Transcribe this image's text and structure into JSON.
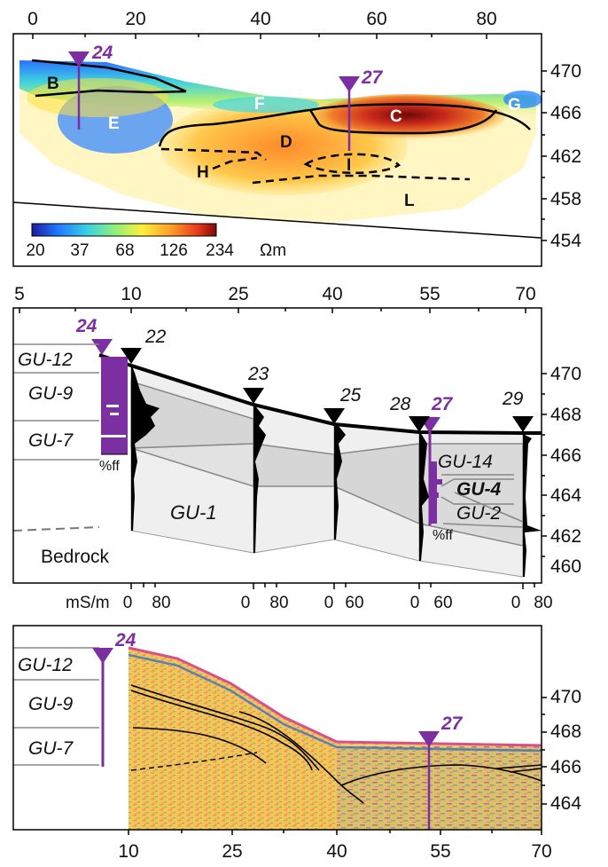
{
  "panel_a": {
    "x_ticks": [
      "0",
      "20",
      "40",
      "60",
      "80"
    ],
    "y_ticks": [
      "470",
      "466",
      "462",
      "458",
      "454"
    ],
    "wells": [
      {
        "label": "24"
      },
      {
        "label": "27"
      }
    ],
    "zones": [
      "B",
      "E",
      "F",
      "C",
      "G",
      "D",
      "H",
      "I",
      "L"
    ],
    "colorbar": {
      "ticks": [
        "20",
        "37",
        "68",
        "126",
        "234"
      ],
      "unit": "Ωm",
      "colors": [
        "#1a1aa0",
        "#1f78ff",
        "#3ad0e6",
        "#8ef07a",
        "#ffef3a",
        "#ff9f2a",
        "#e83a1a",
        "#7a0a0a"
      ]
    }
  },
  "panel_b": {
    "x_ticks": [
      "5",
      "10",
      "25",
      "40",
      "55",
      "70"
    ],
    "y_ticks": [
      "470",
      "468",
      "466",
      "464",
      "462",
      "460"
    ],
    "boreholes": [
      "22",
      "23",
      "25",
      "28",
      "29"
    ],
    "well_24": "24",
    "well_27": "27",
    "units_left": [
      "GU-12",
      "GU-9",
      "GU-7"
    ],
    "units_right": [
      "GU-14",
      "GU-4",
      "GU-2"
    ],
    "gu1": "GU-1",
    "bedrock": "Bedrock",
    "pff": "%ff",
    "log_unit": "mS/m",
    "log_scales": [
      {
        "a": "0",
        "b": "80"
      },
      {
        "a": "0",
        "b": "80"
      },
      {
        "a": "0",
        "b": "60"
      },
      {
        "a": "0",
        "b": "60"
      },
      {
        "a": "0",
        "b": "80"
      }
    ]
  },
  "panel_c": {
    "x_ticks": [
      "10",
      "25",
      "40",
      "55",
      "70"
    ],
    "y_ticks": [
      "470",
      "468",
      "466",
      "464"
    ],
    "units_left": [
      "GU-12",
      "GU-9",
      "GU-7"
    ],
    "well_24": "24",
    "well_27": "27"
  },
  "colors": {
    "purple": "#7b2fa0",
    "black": "#000000"
  }
}
